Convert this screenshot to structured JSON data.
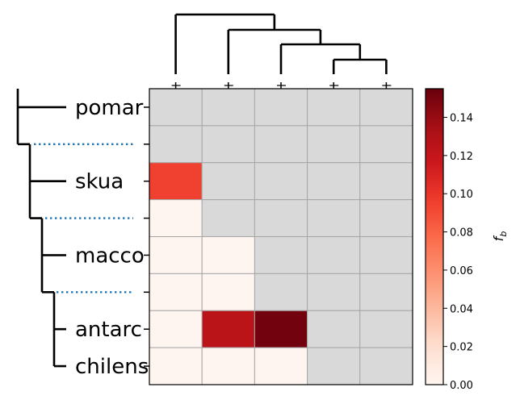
{
  "chart_data": {
    "type": "heatmap",
    "rows": [
      "pomar",
      "",
      "skua",
      "",
      "macco",
      "",
      "antarc",
      "chilens"
    ],
    "columns": [
      "",
      "",
      "",
      "",
      ""
    ],
    "values": [
      [
        null,
        null,
        null,
        null,
        null
      ],
      [
        null,
        null,
        null,
        null,
        null
      ],
      [
        0.095,
        null,
        null,
        null,
        null
      ],
      [
        0.0,
        null,
        null,
        null,
        null
      ],
      [
        0.0,
        0.0,
        null,
        null,
        null
      ],
      [
        0.0,
        0.0,
        null,
        null,
        null
      ],
      [
        0.0,
        0.125,
        0.152,
        null,
        null
      ],
      [
        0.0,
        0.0,
        0.0,
        null,
        null
      ]
    ],
    "missing_color": "#d9d9d9",
    "colormap": "Reds",
    "colorbar": {
      "label": "f_b",
      "label_main": "f",
      "label_sub": "b",
      "range": [
        0,
        0.155
      ],
      "ticks": [
        "0.00",
        "0.02",
        "0.04",
        "0.06",
        "0.08",
        "0.10",
        "0.12",
        "0.14"
      ]
    },
    "dendrogram_color": "#000000",
    "separator_color": "#1f77b4",
    "grid": true
  }
}
